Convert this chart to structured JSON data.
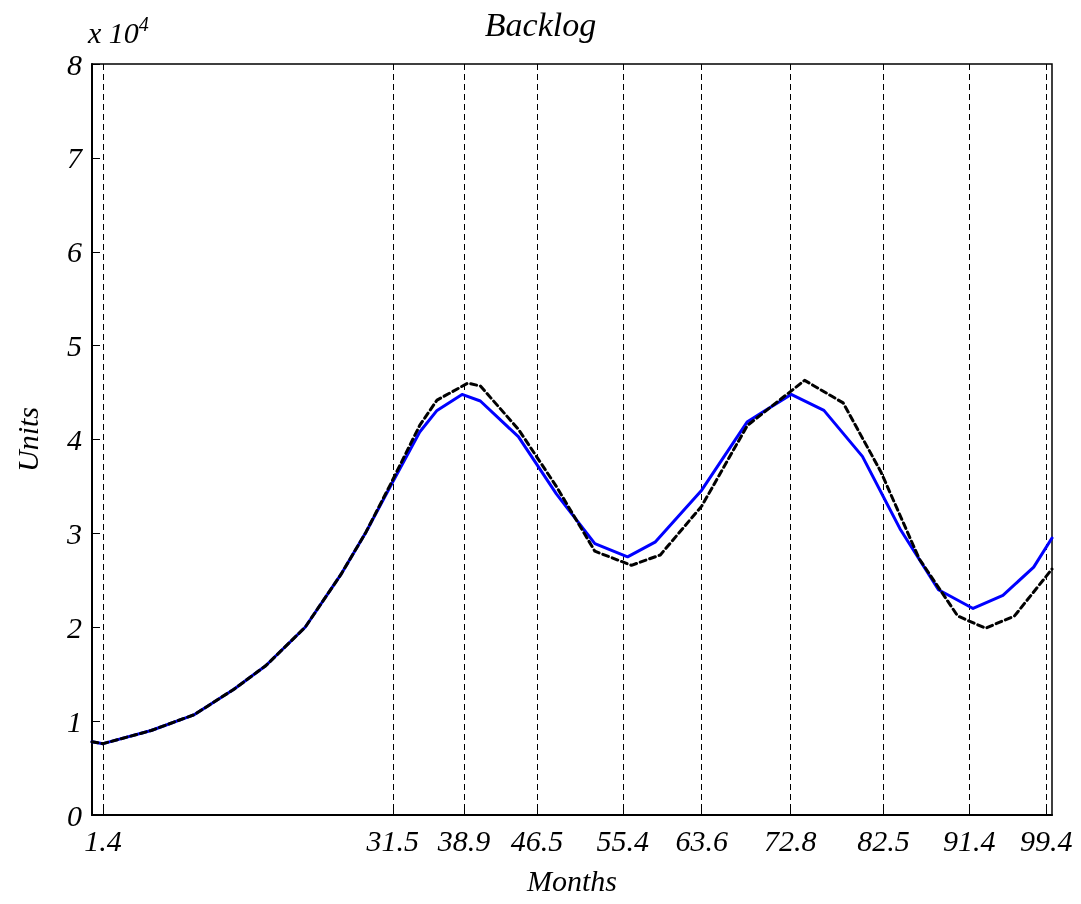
{
  "chart_data": {
    "type": "line",
    "title": "Backlog",
    "xlabel": "Months",
    "ylabel": "Units",
    "annotations": [
      "x 10$^{4}$"
    ],
    "xlim": [
      0.25,
      100
    ],
    "xticks": [
      1.4,
      31.5,
      38.9,
      46.5,
      55.4,
      63.6,
      72.8,
      82.5,
      91.4,
      99.4
    ],
    "ylim": [
      0,
      8
    ],
    "yticks": [
      0,
      1,
      2,
      3,
      4,
      5,
      6,
      7,
      8
    ],
    "grid": "x",
    "marker": "none",
    "series": [
      {
        "color": "#0000ff",
        "line_style": "solid",
        "x": [
          0.25,
          1.4,
          6.4,
          10.9,
          15.0,
          18.3,
          22.4,
          26.1,
          28.7,
          31.3,
          34.3,
          36.1,
          38.7,
          40.6,
          44.55,
          48.5,
          52.5,
          55.9,
          58.8,
          63.6,
          68.35,
          72.9,
          76.3,
          80.3,
          84.2,
          88.2,
          91.8,
          94.9,
          98.1,
          100
        ],
        "values": [
          0.78,
          0.76,
          0.9,
          1.07,
          1.34,
          1.59,
          2.0,
          2.56,
          3.01,
          3.51,
          4.08,
          4.31,
          4.48,
          4.41,
          4.03,
          3.42,
          2.89,
          2.75,
          2.91,
          3.46,
          4.19,
          4.48,
          4.31,
          3.82,
          3.05,
          2.4,
          2.2,
          2.34,
          2.64,
          2.95
        ]
      },
      {
        "color": "#000000",
        "line_style": "dashed",
        "x": [
          0.25,
          1.4,
          6.4,
          10.9,
          15.0,
          18.3,
          22.4,
          26.1,
          28.7,
          31.3,
          34.3,
          36.1,
          39.3,
          40.6,
          44.55,
          48.5,
          52.5,
          56.3,
          59.3,
          63.6,
          68.35,
          74.3,
          78.3,
          82.2,
          86.2,
          90.2,
          93.1,
          96.1,
          100
        ],
        "values": [
          0.78,
          0.76,
          0.9,
          1.07,
          1.34,
          1.59,
          2.0,
          2.56,
          3.01,
          3.53,
          4.15,
          4.42,
          4.6,
          4.57,
          4.11,
          3.5,
          2.81,
          2.66,
          2.77,
          3.29,
          4.15,
          4.63,
          4.39,
          3.66,
          2.73,
          2.12,
          1.99,
          2.12,
          2.62
        ]
      }
    ]
  }
}
